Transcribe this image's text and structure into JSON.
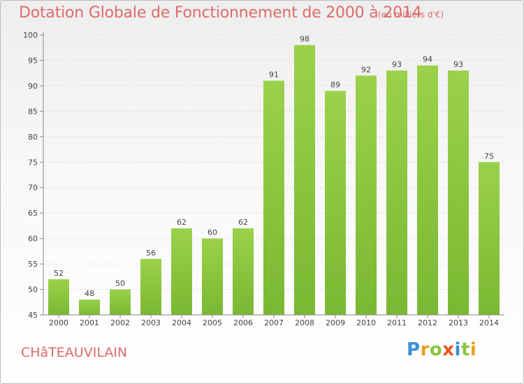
{
  "title": "Dotation Globale de Fonctionnement de 2000 à 2014",
  "subtitle": "(en milliers d'€)",
  "commune": "CHâTEAUVILAIN",
  "logo": {
    "letters": [
      "P",
      "r",
      "o",
      "x",
      "i",
      "t",
      "i"
    ],
    "colors": [
      "#3a8fd6",
      "#e8a11c",
      "#8cc63f",
      "#e8541c",
      "#3a8fd6",
      "#8cc63f",
      "#e8a11c"
    ]
  },
  "chart_data": {
    "type": "bar",
    "categories": [
      "2000",
      "2001",
      "2002",
      "2003",
      "2004",
      "2005",
      "2006",
      "2007",
      "2008",
      "2009",
      "2010",
      "2011",
      "2012",
      "2013",
      "2014"
    ],
    "values": [
      52,
      48,
      50,
      56,
      62,
      60,
      62,
      91,
      98,
      89,
      92,
      93,
      94,
      93,
      75
    ],
    "ylim": [
      45,
      100
    ],
    "yticks": [
      45,
      50,
      55,
      60,
      65,
      70,
      75,
      80,
      85,
      90,
      95,
      100
    ],
    "grid": true,
    "bar_color": "#7ab833",
    "bar_color_light": "#9bd14a"
  }
}
